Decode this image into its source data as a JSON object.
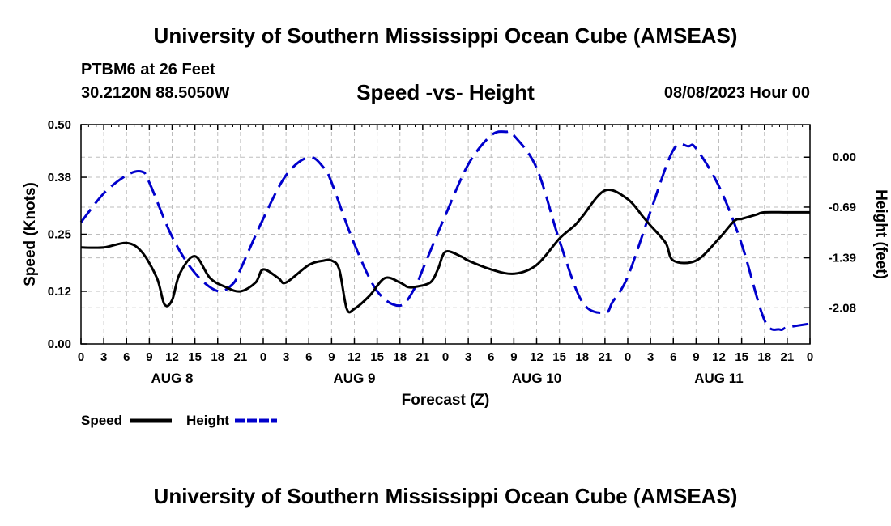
{
  "header": {
    "title": "University of Southern Mississippi Ocean Cube (AMSEAS)",
    "station": "PTBM6 at 26 Feet",
    "coords": "30.2120N  88.5050W",
    "subtitle": "Speed -vs- Height",
    "timestamp": "08/08/2023 Hour 00"
  },
  "footer": {
    "title": "University of Southern Mississippi Ocean Cube (AMSEAS)"
  },
  "chart_data": {
    "type": "line",
    "xlabel": "Forecast (Z)",
    "ylabel_left": "Speed (Knots)",
    "ylabel_right": "Height (feet)",
    "x_range": [
      0,
      96
    ],
    "ylim_left": [
      0,
      0.5
    ],
    "ylim_right": [
      -2.58,
      0.45
    ],
    "x_ticks": [
      0,
      3,
      6,
      9,
      12,
      15,
      18,
      21,
      24,
      27,
      30,
      33,
      36,
      39,
      42,
      45,
      48,
      51,
      54,
      57,
      60,
      63,
      66,
      69,
      72,
      75,
      78,
      81,
      84,
      87,
      90,
      93,
      96
    ],
    "x_tick_labels": [
      "0",
      "3",
      "6",
      "9",
      "12",
      "15",
      "18",
      "21",
      "0",
      "3",
      "6",
      "9",
      "12",
      "15",
      "18",
      "21",
      "0",
      "3",
      "6",
      "9",
      "12",
      "15",
      "18",
      "21",
      "0",
      "3",
      "6",
      "9",
      "12",
      "15",
      "18",
      "21",
      "0"
    ],
    "date_labels": [
      {
        "hour": 12,
        "label": "AUG 8"
      },
      {
        "hour": 36,
        "label": "AUG 9"
      },
      {
        "hour": 60,
        "label": "AUG 10"
      },
      {
        "hour": 84,
        "label": "AUG 11"
      }
    ],
    "left_ticks": [
      0.0,
      0.12,
      0.25,
      0.38,
      0.5
    ],
    "left_tick_labels": [
      "0.00",
      "0.12",
      "0.25",
      "0.38",
      "0.50"
    ],
    "right_ticks": [
      0.0,
      -0.69,
      -1.39,
      -2.08
    ],
    "right_tick_labels": [
      "0.00",
      "-0.69",
      "-1.39",
      "-2.08"
    ],
    "grid": true,
    "legend": [
      {
        "name": "Speed",
        "color": "#000000",
        "style": "solid"
      },
      {
        "name": "Height",
        "color": "#0000cc",
        "style": "dashed"
      }
    ],
    "series": [
      {
        "name": "Speed",
        "axis": "left",
        "color": "#000000",
        "x": [
          0,
          3,
          6,
          8,
          10,
          11,
          12,
          13,
          15,
          17,
          19,
          21,
          23,
          24,
          26,
          27,
          30,
          32,
          33,
          34,
          35,
          36,
          38,
          40,
          42,
          43,
          44,
          46,
          47,
          48,
          50,
          51,
          54,
          57,
          60,
          63,
          65,
          66,
          69,
          72,
          74,
          75,
          77,
          78,
          81,
          84,
          86,
          87,
          88,
          89,
          90,
          93,
          96
        ],
        "y": [
          0.22,
          0.22,
          0.23,
          0.21,
          0.15,
          0.09,
          0.1,
          0.16,
          0.2,
          0.15,
          0.13,
          0.12,
          0.14,
          0.17,
          0.15,
          0.14,
          0.18,
          0.19,
          0.19,
          0.17,
          0.08,
          0.08,
          0.11,
          0.15,
          0.14,
          0.13,
          0.13,
          0.14,
          0.17,
          0.21,
          0.2,
          0.19,
          0.17,
          0.16,
          0.18,
          0.24,
          0.27,
          0.29,
          0.35,
          0.33,
          0.29,
          0.27,
          0.23,
          0.19,
          0.19,
          0.24,
          0.28,
          0.285,
          0.29,
          0.295,
          0.3,
          0.3,
          0.3
        ]
      },
      {
        "name": "Height",
        "axis": "right",
        "color": "#0000cc",
        "x": [
          0,
          3,
          6,
          8,
          9,
          12,
          15,
          18,
          20,
          21,
          24,
          27,
          30,
          32,
          33,
          36,
          39,
          42,
          44,
          45,
          48,
          51,
          54,
          56,
          57,
          60,
          63,
          66,
          69,
          70,
          72,
          75,
          78,
          80,
          81,
          84,
          87,
          90,
          92,
          93,
          96
        ],
        "y": [
          -0.9,
          -0.5,
          -0.25,
          -0.2,
          -0.35,
          -1.1,
          -1.6,
          -1.85,
          -1.75,
          -1.55,
          -0.85,
          -0.25,
          0.0,
          -0.15,
          -0.35,
          -1.2,
          -1.85,
          -2.05,
          -1.8,
          -1.55,
          -0.8,
          -0.1,
          0.3,
          0.35,
          0.3,
          -0.15,
          -1.15,
          -2.0,
          -2.15,
          -2.0,
          -1.65,
          -0.75,
          0.1,
          0.15,
          0.12,
          -0.4,
          -1.2,
          -2.25,
          -2.38,
          -2.35,
          -2.3
        ]
      }
    ]
  }
}
